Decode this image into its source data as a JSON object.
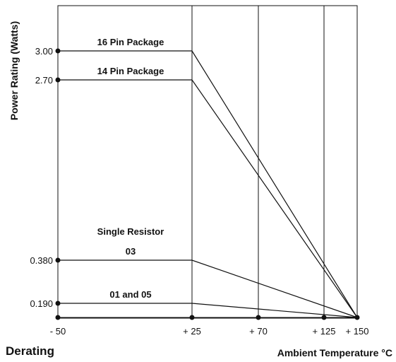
{
  "caption": "Derating",
  "chart_data": {
    "type": "line",
    "xlabel": "Ambient Temperature °C",
    "ylabel": "Power Rating (Watts)",
    "x_ticks": [
      {
        "value": -50,
        "label": "- 50"
      },
      {
        "value": 25,
        "label": "+ 25"
      },
      {
        "value": 70,
        "label": "+ 70"
      },
      {
        "value": 125,
        "label": "+ 125"
      },
      {
        "value": 150,
        "label": "+ 150"
      }
    ],
    "y_ticks": [
      {
        "value": 3.0,
        "label": "3.00"
      },
      {
        "value": 2.7,
        "label": "2.70"
      },
      {
        "value": 0.38,
        "label": "0.380"
      },
      {
        "value": 0.19,
        "label": "0.190"
      }
    ],
    "grid": true,
    "series": [
      {
        "name": "16 Pin Package",
        "points": [
          [
            -50,
            3.0
          ],
          [
            25,
            3.0
          ],
          [
            150,
            0
          ]
        ]
      },
      {
        "name": "14 Pin Package",
        "points": [
          [
            -50,
            2.7
          ],
          [
            25,
            2.7
          ],
          [
            150,
            0
          ]
        ]
      },
      {
        "name": "03",
        "group_label": "Single Resistor",
        "points": [
          [
            -50,
            0.38
          ],
          [
            25,
            0.38
          ],
          [
            150,
            0
          ]
        ]
      },
      {
        "name": "01 and 05",
        "points": [
          [
            -50,
            0.19
          ],
          [
            25,
            0.19
          ],
          [
            150,
            0
          ]
        ]
      }
    ]
  }
}
